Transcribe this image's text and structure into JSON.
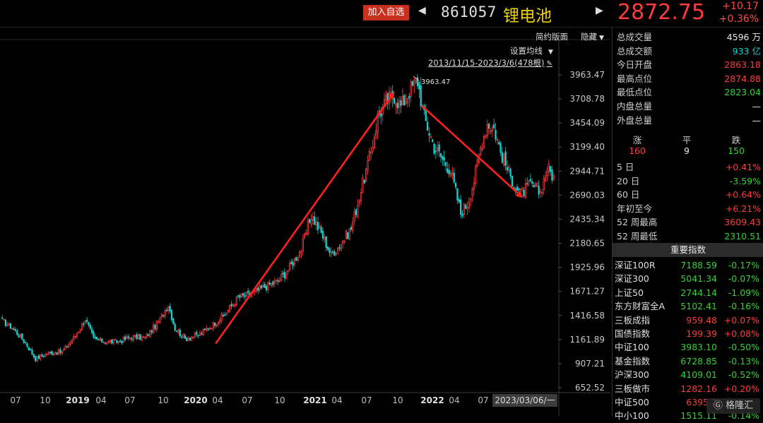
{
  "header": {
    "add_label": "加入自选",
    "code": "861057",
    "name": "锂电池",
    "price": "2872.75",
    "change": "+10.17",
    "change_pct": "+0.36%",
    "prev_arrow": "◀",
    "next_arrow": "▶"
  },
  "chart_controls": {
    "simple_label": "简约版面",
    "hide_label": "隐藏",
    "ma_label": "设置均线",
    "range_label": "2013/11/15-2023/3/6(478根)",
    "max_annotation": "3963.47"
  },
  "colors": {
    "up": "#ff3b3b",
    "down": "#19d0d0",
    "arrow": "#ff2020",
    "grid": "#222222"
  },
  "chart_data": {
    "type": "candlestick",
    "y_ticks": [
      "3963.47",
      "3708.78",
      "3454.09",
      "3199.40",
      "2944.71",
      "2690.03",
      "2435.34",
      "2180.65",
      "1925.96",
      "1671.27",
      "1416.58",
      "1161.89",
      "907.21",
      "652.52"
    ],
    "ylim": [
      652.52,
      3963.47
    ],
    "x_ticks": [
      "07",
      "10",
      "2019",
      "04",
      "07",
      "10",
      "2020",
      "04",
      "07",
      "10",
      "2021",
      "04",
      "07",
      "10",
      "2022",
      "04",
      "07"
    ],
    "x_cursor_label": "2023/03/06/一",
    "trend_arrows": [
      {
        "from_date": "2020-03",
        "from_value": 1120,
        "to_date": "2021-09",
        "to_value": 3760
      },
      {
        "from_date": "2021-12",
        "from_value": 3630,
        "to_date": "2022-10",
        "to_value": 2680
      }
    ],
    "close_series_anchors": [
      [
        0,
        1360
      ],
      [
        6,
        1290
      ],
      [
        14,
        1130
      ],
      [
        20,
        960
      ],
      [
        28,
        1020
      ],
      [
        36,
        1030
      ],
      [
        44,
        1200
      ],
      [
        50,
        1380
      ],
      [
        55,
        1170
      ],
      [
        62,
        1140
      ],
      [
        70,
        1140
      ],
      [
        78,
        1190
      ],
      [
        86,
        1180
      ],
      [
        94,
        1350
      ],
      [
        100,
        1530
      ],
      [
        104,
        1280
      ],
      [
        110,
        1170
      ],
      [
        118,
        1210
      ],
      [
        126,
        1310
      ],
      [
        134,
        1430
      ],
      [
        142,
        1610
      ],
      [
        150,
        1640
      ],
      [
        158,
        1720
      ],
      [
        166,
        1780
      ],
      [
        172,
        1900
      ],
      [
        180,
        2120
      ],
      [
        186,
        2480
      ],
      [
        192,
        2290
      ],
      [
        198,
        2060
      ],
      [
        204,
        2180
      ],
      [
        210,
        2340
      ],
      [
        216,
        2740
      ],
      [
        222,
        3150
      ],
      [
        226,
        3520
      ],
      [
        232,
        3700
      ],
      [
        236,
        3750
      ],
      [
        240,
        3630
      ],
      [
        246,
        3820
      ],
      [
        250,
        3900
      ],
      [
        254,
        3520
      ],
      [
        260,
        3200
      ],
      [
        266,
        3050
      ],
      [
        270,
        2950
      ],
      [
        276,
        2500
      ],
      [
        280,
        2600
      ],
      [
        284,
        2850
      ],
      [
        288,
        3200
      ],
      [
        292,
        3450
      ],
      [
        296,
        3400
      ],
      [
        300,
        3150
      ],
      [
        306,
        2880
      ],
      [
        312,
        2700
      ],
      [
        318,
        2800
      ],
      [
        324,
        2720
      ],
      [
        328,
        2990
      ],
      [
        332,
        2880
      ]
    ]
  },
  "sidebar": {
    "stats": [
      {
        "label": "总成交量",
        "value": "4596 万",
        "color": "white"
      },
      {
        "label": "总成交额",
        "value": "933 亿",
        "color": "cyan"
      },
      {
        "label": "今日开盘",
        "value": "2863.18",
        "color": "red"
      },
      {
        "label": "最高点位",
        "value": "2874.88",
        "color": "red"
      },
      {
        "label": "最低点位",
        "value": "2823.04",
        "color": "green"
      },
      {
        "label": "内盘总量",
        "value": "—",
        "color": "white"
      },
      {
        "label": "外盘总量",
        "value": "—",
        "color": "white"
      }
    ],
    "breadth": {
      "up_label": "涨",
      "flat_label": "平",
      "down_label": "跌",
      "up": "160",
      "flat": "9",
      "down": "150"
    },
    "periods": [
      {
        "label": "5 日",
        "value": "+0.41%",
        "color": "red"
      },
      {
        "label": "20 日",
        "value": "-3.59%",
        "color": "green"
      },
      {
        "label": "60 日",
        "value": "+0.64%",
        "color": "red"
      },
      {
        "label": "年初至今",
        "value": "+6.21%",
        "color": "red"
      },
      {
        "label": "52 周最高",
        "value": "3609.43",
        "color": "red"
      },
      {
        "label": "52 周最低",
        "value": "2310.51",
        "color": "green"
      }
    ],
    "index_header": "重要指数",
    "indices": [
      {
        "name": "深证100R",
        "value": "7188.59",
        "pct": "-0.17%",
        "color": "green"
      },
      {
        "name": "深证300",
        "value": "5041.34",
        "pct": "-0.07%",
        "color": "green"
      },
      {
        "name": "上证50",
        "value": "2744.14",
        "pct": "-1.09%",
        "color": "green"
      },
      {
        "name": "东方财富全A",
        "value": "5102.41",
        "pct": "-0.16%",
        "color": "green"
      },
      {
        "name": "三板成指",
        "value": "959.48",
        "pct": "+0.07%",
        "color": "red"
      },
      {
        "name": "国债指数",
        "value": "199.39",
        "pct": "+0.08%",
        "color": "red"
      },
      {
        "name": "中证100",
        "value": "3983.10",
        "pct": "-0.50%",
        "color": "green"
      },
      {
        "name": "基金指数",
        "value": "6728.85",
        "pct": "-0.13%",
        "color": "green"
      },
      {
        "name": "沪深300",
        "value": "4109.01",
        "pct": "-0.52%",
        "color": "green"
      },
      {
        "name": "三板做市",
        "value": "1282.16",
        "pct": "+0.20%",
        "color": "red"
      },
      {
        "name": "中证500",
        "value": "6395.2",
        "pct": "",
        "color": "red"
      },
      {
        "name": "中小100",
        "value": "1515.11",
        "pct": "-0.14%",
        "color": "green"
      }
    ],
    "watermark": "格隆汇"
  }
}
